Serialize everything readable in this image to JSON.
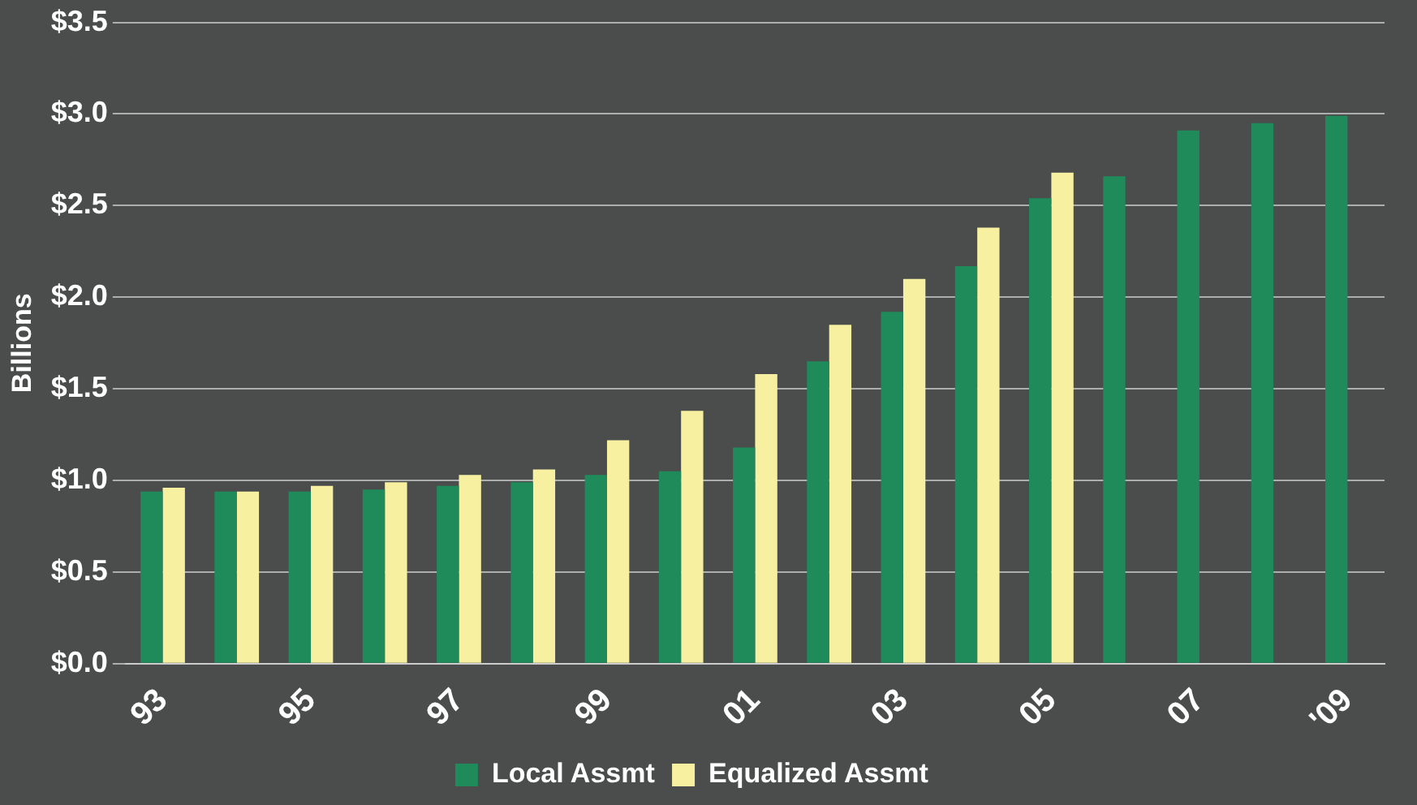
{
  "chart_data": {
    "type": "bar",
    "ylabel": "Billions",
    "categories": [
      "93",
      null,
      "95",
      null,
      "97",
      null,
      "99",
      null,
      "01",
      null,
      "03",
      null,
      "05",
      null,
      "07",
      null,
      "'09"
    ],
    "series": [
      {
        "name": "Local Assmt",
        "color": "#1f8a5a",
        "values": [
          0.94,
          0.94,
          0.94,
          0.95,
          0.97,
          0.99,
          1.03,
          1.05,
          1.18,
          1.65,
          1.92,
          2.17,
          2.54,
          2.66,
          2.91,
          2.95,
          2.99
        ]
      },
      {
        "name": "Equalized Assmt",
        "color": "#f6f0a0",
        "values": [
          0.96,
          0.94,
          0.97,
          0.99,
          1.03,
          1.06,
          1.22,
          1.38,
          1.58,
          1.85,
          2.1,
          2.38,
          2.68,
          null,
          null,
          null,
          null
        ]
      }
    ],
    "ylim": [
      0,
      3.5
    ],
    "yticks": [
      {
        "value": 0,
        "label": "$0.0"
      },
      {
        "value": 0.5,
        "label": "$0.5"
      },
      {
        "value": 1,
        "label": "$1.0"
      },
      {
        "value": 1.5,
        "label": "$1.5"
      },
      {
        "value": 2,
        "label": "$2.0"
      },
      {
        "value": 2.5,
        "label": "$2.5"
      },
      {
        "value": 3,
        "label": "$3.0"
      },
      {
        "value": 3.5,
        "label": "$3.5"
      }
    ],
    "grid": "y",
    "legend": "bottom"
  }
}
